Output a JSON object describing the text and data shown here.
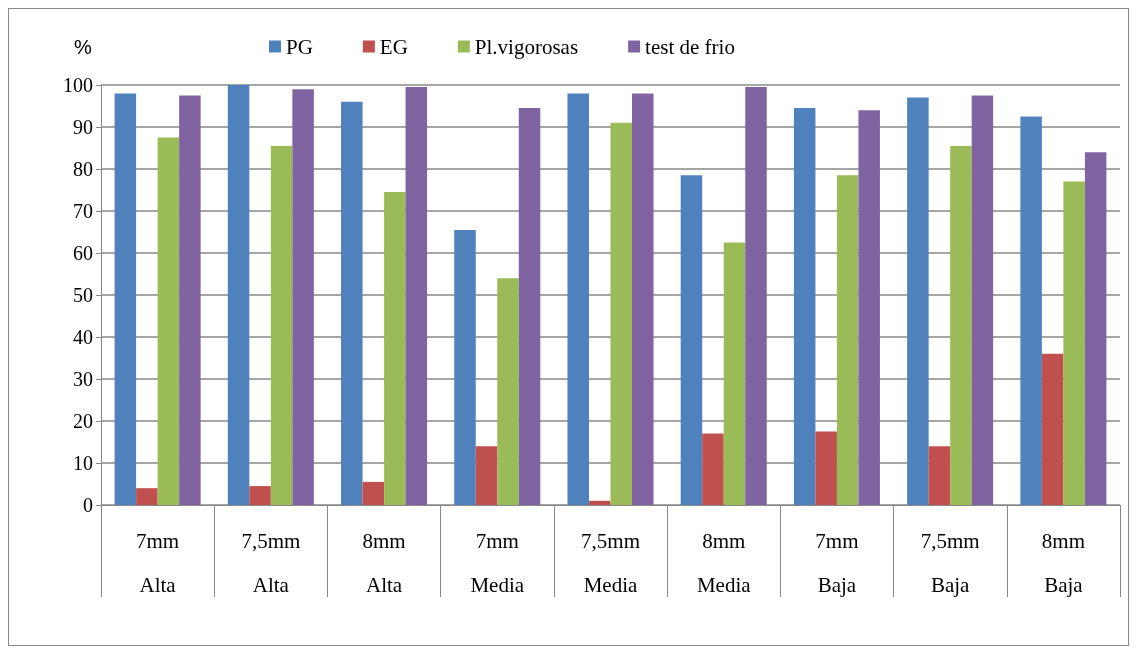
{
  "chart_data": {
    "type": "bar",
    "ylabel": "%",
    "categories": [
      "7mm\nAlta",
      "7,5mm\nAlta",
      "8mm\nAlta",
      "7mm\nMedia",
      "7,5mm\nMedia",
      "8mm\nMedia",
      "7mm\nBaja",
      "7,5mm\nBaja",
      "8mm\nBaja"
    ],
    "series": [
      {
        "name": "PG",
        "color": "#4f81bd",
        "values": [
          98,
          100,
          96,
          65.5,
          98,
          78.5,
          94.5,
          97,
          92.5
        ]
      },
      {
        "name": "EG",
        "color": "#c0504d",
        "values": [
          4,
          4.5,
          5.5,
          14,
          1,
          17,
          17.5,
          14,
          36
        ]
      },
      {
        "name": "Pl.vigorosas",
        "color": "#9bbb59",
        "values": [
          87.5,
          85.5,
          74.5,
          54,
          91,
          62.5,
          78.5,
          85.5,
          77
        ]
      },
      {
        "name": "test de frio",
        "color": "#8064a2",
        "values": [
          97.5,
          99,
          99.5,
          94.5,
          98,
          99.5,
          94,
          97.5,
          84
        ]
      }
    ],
    "ylim": [
      0,
      100
    ],
    "yticks": [
      0,
      10,
      20,
      30,
      40,
      50,
      60,
      70,
      80,
      90,
      100
    ],
    "grid": "y",
    "legend": "top"
  }
}
